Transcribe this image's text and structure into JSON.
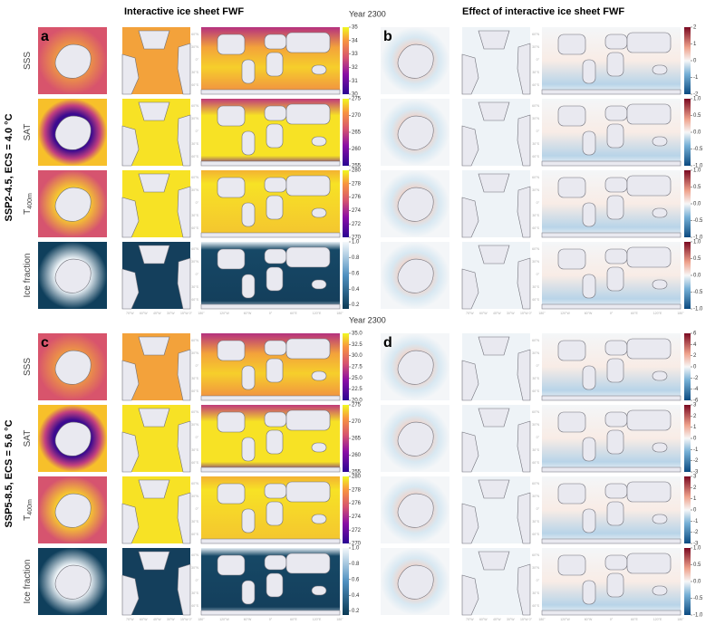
{
  "headings": {
    "left": "Interactive ice sheet FWF",
    "right": "Effect of interactive ice sheet FWF",
    "year": "Year 2300"
  },
  "rows": [
    {
      "label": "SSS"
    },
    {
      "label": "SAT"
    },
    {
      "label": "T",
      "sub": "400m"
    },
    {
      "label": "Ice fraction"
    }
  ],
  "map_labels": {
    "atl_lon": [
      "75°W",
      "60°W",
      "45°W",
      "30°W",
      "15°W 0°"
    ],
    "glob_lon": [
      "180°",
      "120°W",
      "60°W",
      "0°",
      "60°E",
      "120°E",
      "180°"
    ],
    "glob_lat": [
      "60°N",
      "30°N",
      "0°",
      "30°S",
      "60°S"
    ]
  },
  "blocks": [
    {
      "scenario": "SSP2-4.5, ECS = 4.0 °C",
      "panels": [
        "a",
        "b"
      ],
      "colorbars": {
        "left": [
          {
            "lim": [
              30,
              35
            ],
            "ticks": [
              35,
              34,
              33,
              32,
              31,
              30
            ]
          },
          {
            "lim": [
              255,
              275
            ],
            "ticks": [
              275,
              270,
              265,
              260,
              255
            ]
          },
          {
            "lim": [
              270,
              280
            ],
            "ticks": [
              280,
              278,
              276,
              274,
              272,
              270
            ]
          },
          {
            "lim": [
              0.15,
              1
            ],
            "ticks": [
              {
                "value": 1,
                "label": "1.0"
              },
              0.8,
              0.6,
              0.4,
              0.2
            ]
          }
        ],
        "right": [
          {
            "lim": [
              -2,
              2
            ],
            "ticks": [
              2,
              1,
              0,
              -1,
              -2
            ]
          },
          {
            "lim": [
              -1,
              1
            ],
            "ticks": [
              {
                "value": 1,
                "label": "1.0"
              },
              0.5,
              {
                "value": 0,
                "label": "0.0"
              },
              -0.5,
              {
                "value": -1,
                "label": "-1.0"
              }
            ]
          },
          {
            "lim": [
              -1,
              1
            ],
            "ticks": [
              {
                "value": 1,
                "label": "1.0"
              },
              0.5,
              {
                "value": 0,
                "label": "0.0"
              },
              -0.5,
              {
                "value": -1,
                "label": "-1.0"
              }
            ]
          },
          {
            "lim": [
              -1,
              1
            ],
            "ticks": [
              {
                "value": 1,
                "label": "1.0"
              },
              0.5,
              {
                "value": 0,
                "label": "0.0"
              },
              -0.5,
              {
                "value": -1,
                "label": "-1.0"
              }
            ]
          }
        ]
      }
    },
    {
      "scenario": "SSP5-8.5, ECS = 5.6 °C",
      "panels": [
        "c",
        "d"
      ],
      "colorbars": {
        "left": [
          {
            "lim": [
              20,
              35
            ],
            "ticks": [
              {
                "value": 35,
                "label": "35.0"
              },
              32.5,
              {
                "value": 30,
                "label": "30.0"
              },
              27.5,
              {
                "value": 25,
                "label": "25.0"
              },
              22.5,
              {
                "value": 20,
                "label": "20.0"
              }
            ]
          },
          {
            "lim": [
              255,
              275
            ],
            "ticks": [
              275,
              270,
              265,
              260,
              255
            ]
          },
          {
            "lim": [
              270,
              280
            ],
            "ticks": [
              280,
              278,
              276,
              274,
              272,
              270
            ]
          },
          {
            "lim": [
              0.15,
              1
            ],
            "ticks": [
              {
                "value": 1,
                "label": "1.0"
              },
              0.8,
              0.6,
              0.4,
              0.2
            ]
          }
        ],
        "right": [
          {
            "lim": [
              -6,
              6
            ],
            "ticks": [
              6,
              4,
              2,
              0,
              -2,
              -4,
              -6
            ]
          },
          {
            "lim": [
              -3,
              3
            ],
            "ticks": [
              3,
              2,
              1,
              0,
              -1,
              -2,
              -3
            ]
          },
          {
            "lim": [
              -3,
              3
            ],
            "ticks": [
              3,
              2,
              1,
              0,
              -1,
              -2,
              -3
            ]
          },
          {
            "lim": [
              -1,
              1
            ],
            "ticks": [
              {
                "value": 1,
                "label": "1.0"
              },
              0.5,
              {
                "value": 0,
                "label": "0.0"
              },
              -0.5,
              {
                "value": -1,
                "label": "-1.0"
              }
            ]
          }
        ]
      }
    }
  ]
}
